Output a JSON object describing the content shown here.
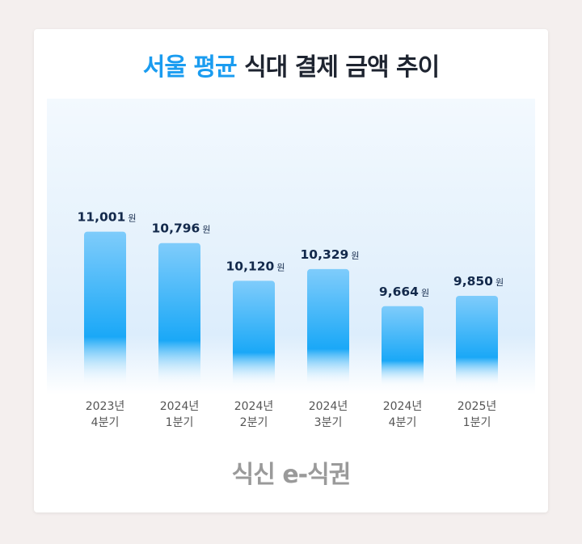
{
  "title": {
    "highlight": "서울 평균",
    "rest": "식대 결제 금액 추이"
  },
  "chart_data": {
    "type": "bar",
    "title": "서울 평균 식대 결제 금액 추이",
    "categories": [
      [
        "2023년",
        "4분기"
      ],
      [
        "2024년",
        "1분기"
      ],
      [
        "2024년",
        "2분기"
      ],
      [
        "2024년",
        "3분기"
      ],
      [
        "2024년",
        "4분기"
      ],
      [
        "2025년",
        "1분기"
      ]
    ],
    "values": [
      11001,
      10796,
      10120,
      10329,
      9664,
      9850
    ],
    "labels": [
      "11,001",
      "10,796",
      "10,120",
      "10,329",
      "9,664",
      "9,850"
    ],
    "unit": "원",
    "colors": {
      "bar_top": "#7fccfb",
      "bar_bottom": "#1aa8f7",
      "label": "#13294b",
      "tick": "#555555"
    }
  },
  "logo": {
    "brand": "식신",
    "product": "e-식권"
  }
}
